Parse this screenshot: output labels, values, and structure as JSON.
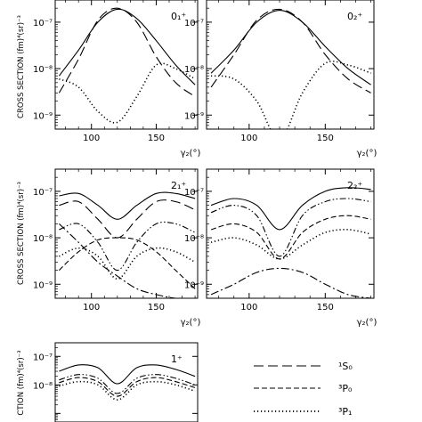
{
  "figure": {
    "y_axis_label": "CROSS SECTION (fm)⁴(sr)⁻³",
    "y_axis_label_cut": "CTION (fm)⁴(sr)⁻³",
    "x_axis_label": "γ₂(°)"
  },
  "legend": [
    {
      "style": "long-dash",
      "label": "¹S₀"
    },
    {
      "style": "short-dash",
      "label": "³P₀"
    },
    {
      "style": "dotted",
      "label": "³P₁"
    }
  ],
  "chart_data": [
    {
      "type": "line",
      "panel_label": "0₁⁺",
      "xlabel": "γ₂(°)",
      "ylabel": "CROSS SECTION (fm)⁴(sr)⁻³",
      "xlim": [
        72,
        182
      ],
      "ylim": [
        5e-10,
        3e-07
      ],
      "yscale": "log",
      "xticks": [
        100,
        150
      ],
      "yticks": [
        "10⁻⁷",
        "10⁻⁸",
        "10⁻⁹"
      ],
      "x": [
        75,
        90,
        105,
        120,
        135,
        150,
        165,
        180
      ],
      "series": [
        {
          "style": "solid",
          "values": [
            7e-09,
            2.5e-08,
            1e-07,
            1.9e-07,
            1.2e-07,
            4e-08,
            1.2e-08,
            4.5e-09
          ]
        },
        {
          "style": "long-dash",
          "values": [
            3e-09,
            1.6e-08,
            1.1e-07,
            2e-07,
            1e-07,
            1.8e-08,
            5e-09,
            2.5e-09
          ]
        },
        {
          "style": "dotted",
          "values": [
            6e-09,
            4e-09,
            1.2e-09,
            7e-10,
            2.5e-09,
            1.2e-08,
            1e-08,
            6e-09
          ]
        }
      ]
    },
    {
      "type": "line",
      "panel_label": "0₂⁺",
      "xlabel": "γ₂(°)",
      "xlim": [
        72,
        182
      ],
      "ylim": [
        5e-10,
        3e-07
      ],
      "yscale": "log",
      "xticks": [
        100,
        150
      ],
      "yticks": [
        "10⁻⁷",
        "10⁻⁸",
        "10⁻⁹"
      ],
      "x": [
        75,
        90,
        105,
        120,
        135,
        150,
        165,
        180
      ],
      "series": [
        {
          "style": "solid",
          "values": [
            8e-09,
            2.5e-08,
            1e-07,
            1.8e-07,
            1e-07,
            3e-08,
            1e-08,
            4.5e-09
          ]
        },
        {
          "style": "long-dash",
          "values": [
            4e-09,
            2e-08,
            1.1e-07,
            1.9e-07,
            1e-07,
            2e-08,
            6e-09,
            3e-09
          ]
        },
        {
          "style": "dotted",
          "values": [
            7e-09,
            6e-09,
            2e-09,
            3e-10,
            3e-09,
            1.3e-08,
            1.2e-08,
            8e-09
          ]
        }
      ]
    },
    {
      "type": "line",
      "panel_label": "2₁⁺",
      "xlabel": "γ₂(°)",
      "ylabel": "CROSS SECTION (fm)⁴(sr)⁻³",
      "xlim": [
        72,
        182
      ],
      "ylim": [
        5e-10,
        3e-07
      ],
      "yscale": "log",
      "xticks": [
        100,
        150
      ],
      "yticks": [
        "10⁻⁷",
        "10⁻⁸",
        "10⁻⁹"
      ],
      "x": [
        75,
        90,
        105,
        120,
        135,
        150,
        165,
        180
      ],
      "series": [
        {
          "style": "solid",
          "values": [
            8e-08,
            9e-08,
            5e-08,
            2.5e-08,
            5e-08,
            9e-08,
            9e-08,
            7e-08
          ]
        },
        {
          "style": "long-dash",
          "values": [
            5e-08,
            6e-08,
            2.5e-08,
            1e-08,
            2.5e-08,
            6e-08,
            6e-08,
            4e-08
          ]
        },
        {
          "style": "dash-dot-dot",
          "values": [
            1.5e-08,
            2e-08,
            8e-09,
            2e-09,
            8e-09,
            2e-08,
            2e-08,
            1.3e-08
          ]
        },
        {
          "style": "short-dash",
          "values": [
            2e-09,
            5e-09,
            9e-09,
            1e-08,
            9e-09,
            5e-09,
            2e-09,
            8e-10
          ]
        },
        {
          "style": "dotted",
          "values": [
            4e-09,
            6e-09,
            4e-09,
            1.3e-09,
            4e-09,
            6e-09,
            5e-09,
            3e-09
          ]
        },
        {
          "style": "dash-dot",
          "values": [
            2e-08,
            8e-09,
            3e-09,
            1.5e-09,
            8e-10,
            6e-10,
            5e-10,
            5e-10
          ]
        }
      ]
    },
    {
      "type": "line",
      "panel_label": "2₂⁺",
      "xlabel": "γ₂(°)",
      "xlim": [
        72,
        182
      ],
      "ylim": [
        5e-10,
        3e-07
      ],
      "yscale": "log",
      "xticks": [
        100,
        150
      ],
      "yticks": [
        "10⁻⁷",
        "10⁻⁸",
        "10⁻⁹"
      ],
      "x": [
        75,
        90,
        105,
        120,
        135,
        150,
        165,
        180
      ],
      "series": [
        {
          "style": "solid",
          "values": [
            5e-08,
            7e-08,
            5e-08,
            1.5e-08,
            5e-08,
            1e-07,
            1.2e-07,
            1.1e-07
          ]
        },
        {
          "style": "dash-dot-dot",
          "values": [
            3.5e-08,
            5e-08,
            3e-08,
            4e-09,
            3e-08,
            6e-08,
            7e-08,
            6e-08
          ]
        },
        {
          "style": "short-dash",
          "values": [
            1.5e-08,
            2e-08,
            1.3e-08,
            3.5e-09,
            1.3e-08,
            2.5e-08,
            3e-08,
            2.5e-08
          ]
        },
        {
          "style": "dotted",
          "values": [
            8e-09,
            1e-08,
            7e-09,
            3.5e-09,
            7e-09,
            1.3e-08,
            1.5e-08,
            1.2e-08
          ]
        },
        {
          "style": "dash-dot",
          "values": [
            6e-10,
            1e-09,
            1.8e-09,
            2.2e-09,
            1.8e-09,
            1e-09,
            6e-10,
            5e-10
          ]
        }
      ]
    },
    {
      "type": "line",
      "panel_label": "1⁺",
      "ylabel": "CTION (fm)⁴(sr)⁻³",
      "xlim": [
        72,
        182
      ],
      "ylim": [
        5e-10,
        3e-07
      ],
      "yscale": "log",
      "yticks": [
        "10⁻⁷",
        "10⁻⁸"
      ],
      "x": [
        75,
        90,
        105,
        120,
        135,
        150,
        165,
        180
      ],
      "series": [
        {
          "style": "solid",
          "values": [
            3e-08,
            5e-08,
            4e-08,
            1.1e-08,
            4e-08,
            5e-08,
            3.5e-08,
            2e-08
          ]
        },
        {
          "style": "dash-dot-dot",
          "values": [
            1.5e-08,
            2.3e-08,
            1.7e-08,
            5e-09,
            1.7e-08,
            2.3e-08,
            1.7e-08,
            1e-08
          ]
        },
        {
          "style": "short-dash",
          "values": [
            1.2e-08,
            1.8e-08,
            1.3e-08,
            4e-09,
            1.3e-08,
            1.8e-08,
            1.3e-08,
            8e-09
          ]
        },
        {
          "style": "dotted",
          "values": [
            9e-09,
            1.3e-08,
            1e-08,
            3e-09,
            1e-08,
            1.3e-08,
            1e-08,
            6e-09
          ]
        }
      ]
    }
  ]
}
